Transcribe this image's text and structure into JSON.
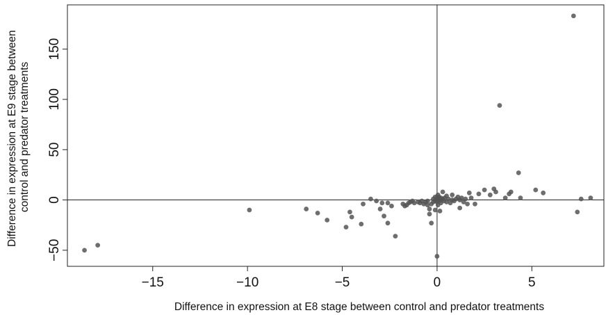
{
  "chart_data": {
    "type": "scatter",
    "title": "",
    "xlabel": "Difference in expression at E8 stage between control and predator treatments",
    "ylabel_lines": [
      "Difference in expression at E9 stage between",
      "control and predator treatments"
    ],
    "xlim": [
      -19.5,
      8.8
    ],
    "ylim": [
      -66,
      194
    ],
    "xticks": [
      -15,
      -10,
      -5,
      0,
      5
    ],
    "yticks": [
      -50,
      0,
      50,
      100,
      150
    ],
    "xtick_labels": [
      "−15",
      "−10",
      "−5",
      "0",
      "5"
    ],
    "ytick_labels": [
      "−50",
      "0",
      "50",
      "100",
      "150"
    ],
    "reference_lines": {
      "x": 0,
      "y": 0
    },
    "grid": false,
    "legend": "none",
    "colors": {
      "point": "#555555",
      "axis": "#222222"
    },
    "points": [
      [
        -18.6,
        -50
      ],
      [
        -17.9,
        -45
      ],
      [
        -9.9,
        -10
      ],
      [
        -6.9,
        -9
      ],
      [
        -6.3,
        -13
      ],
      [
        -5.8,
        -20
      ],
      [
        -4.8,
        -27
      ],
      [
        -4.6,
        -12
      ],
      [
        -4.5,
        -17
      ],
      [
        -4.0,
        -24
      ],
      [
        -3.9,
        -4
      ],
      [
        -3.5,
        1
      ],
      [
        -3.2,
        -1
      ],
      [
        -3.0,
        -9
      ],
      [
        -2.9,
        -3
      ],
      [
        -2.8,
        -16
      ],
      [
        -2.6,
        -23
      ],
      [
        -2.6,
        -3
      ],
      [
        -2.4,
        -6
      ],
      [
        -2.2,
        -36
      ],
      [
        -1.8,
        -4
      ],
      [
        -1.7,
        -6
      ],
      [
        -1.6,
        -5
      ],
      [
        -1.5,
        -3
      ],
      [
        -1.4,
        -2
      ],
      [
        -1.3,
        -1
      ],
      [
        -1.2,
        -3
      ],
      [
        -1.0,
        -2
      ],
      [
        -0.9,
        -3
      ],
      [
        -0.8,
        -1
      ],
      [
        -0.7,
        -4
      ],
      [
        -0.6,
        -2
      ],
      [
        -0.5,
        -1
      ],
      [
        -0.5,
        -5
      ],
      [
        -0.4,
        -14
      ],
      [
        -0.4,
        -9
      ],
      [
        -0.3,
        -23
      ],
      [
        -0.3,
        -4
      ],
      [
        -0.2,
        -2
      ],
      [
        -0.2,
        1
      ],
      [
        -0.1,
        -1
      ],
      [
        -0.1,
        3
      ],
      [
        -0.1,
        -10
      ],
      [
        0.0,
        -56
      ],
      [
        0.0,
        0
      ],
      [
        0.0,
        2
      ],
      [
        0.0,
        -2
      ],
      [
        0.05,
        5
      ],
      [
        0.05,
        -5
      ],
      [
        0.1,
        -1
      ],
      [
        0.1,
        1
      ],
      [
        0.1,
        3
      ],
      [
        0.15,
        -11
      ],
      [
        0.2,
        0
      ],
      [
        0.2,
        2
      ],
      [
        0.2,
        -3
      ],
      [
        0.3,
        8
      ],
      [
        0.3,
        1
      ],
      [
        0.35,
        -1
      ],
      [
        0.4,
        2
      ],
      [
        0.5,
        -2
      ],
      [
        0.5,
        4
      ],
      [
        0.6,
        1
      ],
      [
        0.7,
        -3
      ],
      [
        0.8,
        0
      ],
      [
        0.8,
        5
      ],
      [
        0.9,
        -1
      ],
      [
        1.0,
        1
      ],
      [
        1.1,
        3
      ],
      [
        1.2,
        -8
      ],
      [
        1.2,
        0
      ],
      [
        1.3,
        2
      ],
      [
        1.4,
        -2
      ],
      [
        1.5,
        1
      ],
      [
        1.6,
        -4
      ],
      [
        1.7,
        7
      ],
      [
        1.8,
        2
      ],
      [
        2.0,
        -4
      ],
      [
        2.2,
        6
      ],
      [
        2.5,
        10
      ],
      [
        2.8,
        5
      ],
      [
        3.0,
        11
      ],
      [
        3.1,
        8
      ],
      [
        3.3,
        94
      ],
      [
        3.6,
        2
      ],
      [
        3.8,
        6
      ],
      [
        3.9,
        8
      ],
      [
        4.3,
        27
      ],
      [
        4.4,
        2
      ],
      [
        5.2,
        10
      ],
      [
        5.6,
        7
      ],
      [
        7.2,
        183
      ],
      [
        7.4,
        -12
      ],
      [
        7.6,
        1
      ],
      [
        8.1,
        2
      ]
    ]
  }
}
